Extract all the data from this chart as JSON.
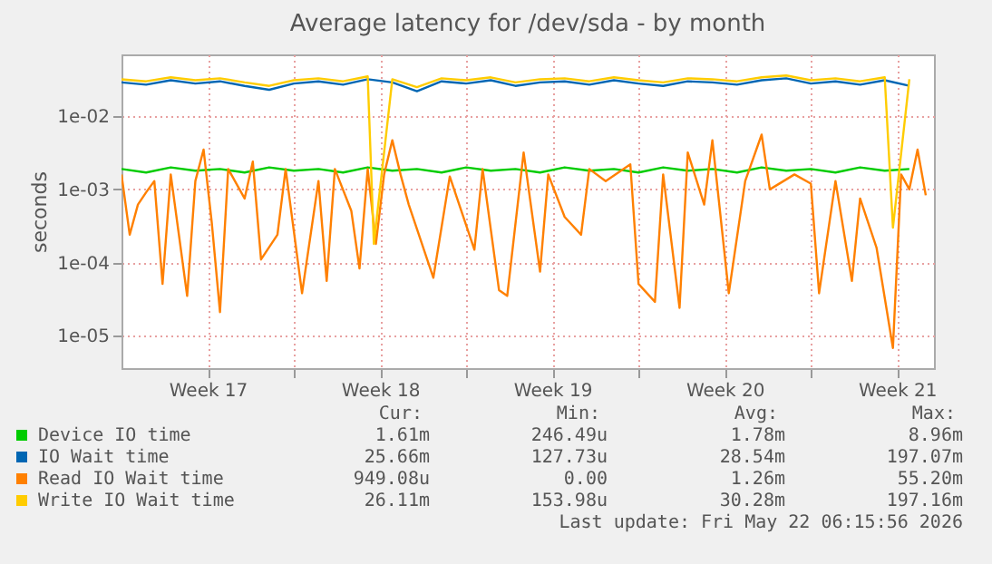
{
  "chart_data": {
    "type": "line",
    "title": "Average latency for /dev/sda - by month",
    "ylabel": "seconds",
    "log": "y",
    "grid": true,
    "legend": "bottom",
    "xlim": [
      "2026-04-20T00:00",
      "2026-05-23T00:00"
    ],
    "xticks": [
      {
        "value": "2026-04-23T12:00",
        "label": "Week 17"
      },
      {
        "value": "2026-04-27T00:00",
        "label": null
      },
      {
        "value": "2026-04-30T12:00",
        "label": "Week 18"
      },
      {
        "value": "2026-05-04T00:00",
        "label": null
      },
      {
        "value": "2026-05-07T12:00",
        "label": "Week 19"
      },
      {
        "value": "2026-05-11T00:00",
        "label": null
      },
      {
        "value": "2026-05-14T12:00",
        "label": "Week 20"
      },
      {
        "value": "2026-05-18T00:00",
        "label": null
      },
      {
        "value": "2026-05-21T12:00",
        "label": "Week 21"
      }
    ],
    "ylim": [
      3.6e-06,
      0.07
    ],
    "yticks": [
      {
        "value": 1e-05,
        "label": "1e-05"
      },
      {
        "value": 0.0001,
        "label": "1e-04"
      },
      {
        "value": 0.001,
        "label": "1e-03"
      },
      {
        "value": 0.01,
        "label": "1e-02"
      }
    ],
    "series": [
      {
        "name": "Device IO time",
        "color": "#00cc00",
        "x": [
          "2026-04-20T00:00",
          "2026-04-21T00:00",
          "2026-04-22T00:00",
          "2026-04-23T00:00",
          "2026-04-24T00:00",
          "2026-04-25T00:00",
          "2026-04-26T00:00",
          "2026-04-27T00:00",
          "2026-04-28T00:00",
          "2026-04-29T00:00",
          "2026-04-30T00:00",
          "2026-05-01T00:00",
          "2026-05-02T00:00",
          "2026-05-03T00:00",
          "2026-05-04T00:00",
          "2026-05-05T00:00",
          "2026-05-06T00:00",
          "2026-05-07T00:00",
          "2026-05-08T00:00",
          "2026-05-09T00:00",
          "2026-05-10T00:00",
          "2026-05-11T00:00",
          "2026-05-12T00:00",
          "2026-05-13T00:00",
          "2026-05-14T00:00",
          "2026-05-15T00:00",
          "2026-05-16T00:00",
          "2026-05-17T00:00",
          "2026-05-18T00:00",
          "2026-05-19T00:00",
          "2026-05-20T00:00",
          "2026-05-21T00:00",
          "2026-05-22T00:00"
        ],
        "values": [
          0.0019,
          0.0017,
          0.002,
          0.0018,
          0.0019,
          0.0017,
          0.002,
          0.0018,
          0.0019,
          0.0017,
          0.002,
          0.0018,
          0.0019,
          0.0017,
          0.002,
          0.0018,
          0.0019,
          0.0017,
          0.002,
          0.0018,
          0.0019,
          0.0017,
          0.002,
          0.0018,
          0.0019,
          0.0017,
          0.002,
          0.0018,
          0.0019,
          0.0017,
          0.002,
          0.0018,
          0.0019
        ]
      },
      {
        "name": "IO Wait time",
        "color": "#0066b3",
        "x": [
          "2026-04-20T00:00",
          "2026-04-21T00:00",
          "2026-04-22T00:00",
          "2026-04-23T00:00",
          "2026-04-24T00:00",
          "2026-04-25T00:00",
          "2026-04-26T00:00",
          "2026-04-27T00:00",
          "2026-04-28T00:00",
          "2026-04-29T00:00",
          "2026-04-30T00:00",
          "2026-05-01T00:00",
          "2026-05-02T00:00",
          "2026-05-03T00:00",
          "2026-05-04T00:00",
          "2026-05-05T00:00",
          "2026-05-06T00:00",
          "2026-05-07T00:00",
          "2026-05-08T00:00",
          "2026-05-09T00:00",
          "2026-05-10T00:00",
          "2026-05-11T00:00",
          "2026-05-12T00:00",
          "2026-05-13T00:00",
          "2026-05-14T00:00",
          "2026-05-15T00:00",
          "2026-05-16T00:00",
          "2026-05-17T00:00",
          "2026-05-18T00:00",
          "2026-05-19T00:00",
          "2026-05-20T00:00",
          "2026-05-21T00:00",
          "2026-05-22T00:00"
        ],
        "values": [
          0.029,
          0.027,
          0.031,
          0.028,
          0.03,
          0.026,
          0.023,
          0.028,
          0.03,
          0.027,
          0.032,
          0.029,
          0.022,
          0.03,
          0.028,
          0.031,
          0.026,
          0.029,
          0.03,
          0.027,
          0.031,
          0.028,
          0.026,
          0.03,
          0.029,
          0.027,
          0.031,
          0.033,
          0.028,
          0.03,
          0.027,
          0.031,
          0.026
        ]
      },
      {
        "name": "Read IO Wait time",
        "color": "#ff8000",
        "x": [
          "2026-04-20T00:00",
          "2026-04-20T08:00",
          "2026-04-20T16:00",
          "2026-04-21T00:00",
          "2026-04-21T08:00",
          "2026-04-21T16:00",
          "2026-04-22T00:00",
          "2026-04-22T16:00",
          "2026-04-23T00:00",
          "2026-04-23T08:00",
          "2026-04-23T16:00",
          "2026-04-24T00:00",
          "2026-04-24T08:00",
          "2026-04-25T00:00",
          "2026-04-25T08:00",
          "2026-04-25T16:00",
          "2026-04-26T08:00",
          "2026-04-26T16:00",
          "2026-04-27T08:00",
          "2026-04-28T00:00",
          "2026-04-28T08:00",
          "2026-04-28T16:00",
          "2026-04-29T08:00",
          "2026-04-29T16:00",
          "2026-04-30T00:00",
          "2026-04-30T08:00",
          "2026-04-30T16:00",
          "2026-05-01T00:00",
          "2026-05-01T08:00",
          "2026-05-01T16:00",
          "2026-05-02T16:00",
          "2026-05-03T08:00",
          "2026-05-04T08:00",
          "2026-05-04T16:00",
          "2026-05-05T08:00",
          "2026-05-05T16:00",
          "2026-05-06T08:00",
          "2026-05-07T00:00",
          "2026-05-07T08:00",
          "2026-05-08T00:00",
          "2026-05-08T16:00",
          "2026-05-09T00:00",
          "2026-05-09T16:00",
          "2026-05-10T16:00",
          "2026-05-11T00:00",
          "2026-05-11T16:00",
          "2026-05-12T00:00",
          "2026-05-12T16:00",
          "2026-05-13T00:00",
          "2026-05-13T16:00",
          "2026-05-14T00:00",
          "2026-05-14T16:00",
          "2026-05-15T08:00",
          "2026-05-16T00:00",
          "2026-05-16T08:00",
          "2026-05-17T08:00",
          "2026-05-18T00:00",
          "2026-05-18T08:00",
          "2026-05-19T00:00",
          "2026-05-19T16:00",
          "2026-05-20T00:00",
          "2026-05-20T16:00",
          "2026-05-21T08:00",
          "2026-05-21T16:00",
          "2026-05-22T00:00",
          "2026-05-22T08:00",
          "2026-05-22T16:00"
        ],
        "values": [
          0.0016,
          0.00024,
          0.00062,
          0.00091,
          0.0013,
          5.1e-05,
          0.0016,
          3.5e-05,
          0.0013,
          0.0035,
          0.00035,
          2.1e-05,
          0.0019,
          0.00075,
          0.0024,
          0.00011,
          0.00024,
          0.0019,
          3.8e-05,
          0.0013,
          5.6e-05,
          0.0019,
          0.00051,
          8.3e-05,
          0.0019,
          0.00018,
          0.0016,
          0.0047,
          0.0016,
          0.00062,
          6.2e-05,
          0.0015,
          0.00015,
          0.0019,
          4.2e-05,
          3.5e-05,
          0.0032,
          7.5e-05,
          0.0016,
          0.00042,
          0.00024,
          0.0019,
          0.0013,
          0.0022,
          5.1e-05,
          2.9e-05,
          0.0016,
          2.4e-05,
          0.0032,
          0.00062,
          0.0047,
          3.8e-05,
          0.0013,
          0.0056,
          0.001,
          0.0016,
          0.0012,
          3.8e-05,
          0.0013,
          5.6e-05,
          0.00075,
          0.00016,
          6.8e-06,
          0.0016,
          0.001,
          0.0035,
          0.00083
        ]
      },
      {
        "name": "Write IO Wait time",
        "color": "#ffcc00",
        "x": [
          "2026-04-20T00:00",
          "2026-04-21T00:00",
          "2026-04-22T00:00",
          "2026-04-23T00:00",
          "2026-04-24T00:00",
          "2026-04-25T00:00",
          "2026-04-26T00:00",
          "2026-04-27T00:00",
          "2026-04-28T00:00",
          "2026-04-29T00:00",
          "2026-04-30T00:00",
          "2026-04-30T06:00",
          "2026-05-01T00:00",
          "2026-05-02T00:00",
          "2026-05-03T00:00",
          "2026-05-04T00:00",
          "2026-05-05T00:00",
          "2026-05-06T00:00",
          "2026-05-07T00:00",
          "2026-05-08T00:00",
          "2026-05-09T00:00",
          "2026-05-10T00:00",
          "2026-05-11T00:00",
          "2026-05-12T00:00",
          "2026-05-13T00:00",
          "2026-05-14T00:00",
          "2026-05-15T00:00",
          "2026-05-16T00:00",
          "2026-05-17T00:00",
          "2026-05-18T00:00",
          "2026-05-19T00:00",
          "2026-05-20T00:00",
          "2026-05-21T00:00",
          "2026-05-21T08:00",
          "2026-05-22T00:00"
        ],
        "values": [
          0.032,
          0.03,
          0.034,
          0.031,
          0.033,
          0.029,
          0.026,
          0.031,
          0.033,
          0.03,
          0.035,
          0.00018,
          0.032,
          0.025,
          0.033,
          0.031,
          0.034,
          0.029,
          0.032,
          0.033,
          0.03,
          0.034,
          0.031,
          0.029,
          0.033,
          0.032,
          0.03,
          0.034,
          0.036,
          0.031,
          0.033,
          0.03,
          0.034,
          0.0003,
          0.032
        ]
      }
    ],
    "annotations": [
      "Cur:",
      "Min:",
      "Avg:",
      "Max:",
      "1.61m",
      "246.49u",
      "1.78m",
      "8.96m",
      "25.66m",
      "127.73u",
      "28.54m",
      "197.07m",
      "949.08u",
      "0.00",
      "1.26m",
      "55.20m",
      "26.11m",
      "153.98u",
      "30.28m",
      "197.16m",
      "Last update: Fri May 22 06:15:56 2026"
    ]
  }
}
